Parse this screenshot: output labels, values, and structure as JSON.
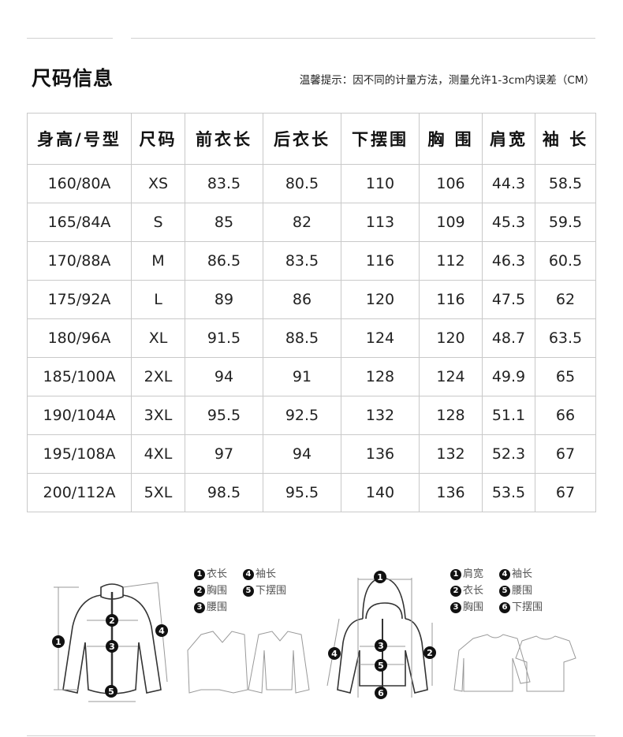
{
  "header": {
    "title": "尺码信息",
    "note": "温馨提示：因不同的计量方法，测量允许1-3cm内误差（CM）"
  },
  "table": {
    "columns": [
      "身高/号型",
      "尺码",
      "前衣长",
      "后衣长",
      "下摆围",
      "胸 围",
      "肩宽",
      "袖 长"
    ],
    "rows": [
      [
        "160/80A",
        "XS",
        "83.5",
        "80.5",
        "110",
        "106",
        "44.3",
        "58.5"
      ],
      [
        "165/84A",
        "S",
        "85",
        "82",
        "113",
        "109",
        "45.3",
        "59.5"
      ],
      [
        "170/88A",
        "M",
        "86.5",
        "83.5",
        "116",
        "112",
        "46.3",
        "60.5"
      ],
      [
        "175/92A",
        "L",
        "89",
        "86",
        "120",
        "116",
        "47.5",
        "62"
      ],
      [
        "180/96A",
        "XL",
        "91.5",
        "88.5",
        "124",
        "120",
        "48.7",
        "63.5"
      ],
      [
        "185/100A",
        "2XL",
        "94",
        "91",
        "128",
        "124",
        "49.9",
        "65"
      ],
      [
        "190/104A",
        "3XL",
        "95.5",
        "92.5",
        "132",
        "128",
        "51.1",
        "66"
      ],
      [
        "195/108A",
        "4XL",
        "97",
        "94",
        "136",
        "132",
        "52.3",
        "67"
      ],
      [
        "200/112A",
        "5XL",
        "98.5",
        "95.5",
        "140",
        "136",
        "53.5",
        "67"
      ]
    ]
  },
  "jacket_diagram": {
    "legend": [
      {
        "num": "1",
        "label": "衣长"
      },
      {
        "num": "4",
        "label": "袖长"
      },
      {
        "num": "2",
        "label": "胸围"
      },
      {
        "num": "5",
        "label": "下摆围"
      },
      {
        "num": "3",
        "label": "腰围"
      }
    ],
    "markers": [
      "1",
      "2",
      "3",
      "4",
      "5"
    ]
  },
  "hoodie_diagram": {
    "legend": [
      {
        "num": "1",
        "label": "肩宽"
      },
      {
        "num": "4",
        "label": "袖长"
      },
      {
        "num": "2",
        "label": "衣长"
      },
      {
        "num": "5",
        "label": "腰围"
      },
      {
        "num": "3",
        "label": "胸围"
      },
      {
        "num": "6",
        "label": "下摆围"
      }
    ],
    "markers": [
      "1",
      "2",
      "3",
      "4",
      "5",
      "6"
    ]
  }
}
